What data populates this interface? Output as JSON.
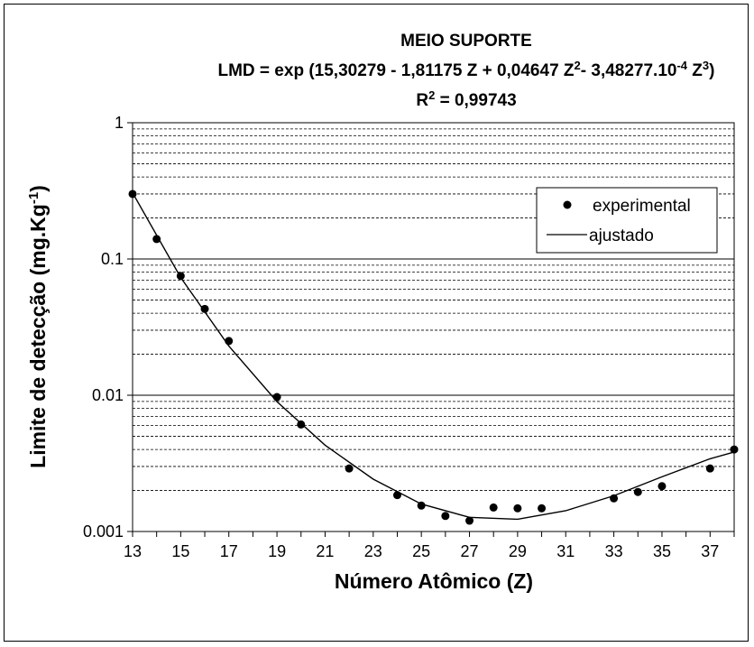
{
  "chart_data": {
    "type": "scatter",
    "title": "MEIO SUPORTE",
    "equation": {
      "lead": "LMD = exp (15,30279 - 1,81175 Z + 0,04647 Z",
      "sup1": "2",
      "mid": "- 3,48277.10",
      "sup2": "-4",
      "mid2": " Z",
      "sup3": "3",
      "tail": ")"
    },
    "r2": {
      "base": "R",
      "sup": "2",
      "rest": " = 0,99743"
    },
    "xlabel": "Número Atômico (Z)",
    "ylabel": {
      "base": "Limite de detecção (mg.Kg",
      "sup": "-1",
      "tail": ")"
    },
    "xlim": [
      13,
      38
    ],
    "ylim": [
      0.001,
      1
    ],
    "y_scale": "log",
    "x_ticks": [
      "13",
      "15",
      "17",
      "19",
      "21",
      "23",
      "25",
      "27",
      "29",
      "31",
      "33",
      "35",
      "37"
    ],
    "y_ticks": [
      {
        "value": 1,
        "label": "1"
      },
      {
        "value": 0.1,
        "label": "0.1"
      },
      {
        "value": 0.01,
        "label": "0.01"
      },
      {
        "value": 0.001,
        "label": "0.001"
      }
    ],
    "grid": "horizontal dashed minor, solid major",
    "legend_position": "top-right",
    "series": [
      {
        "name": "experimental",
        "kind": "markers",
        "x": [
          13,
          14,
          15,
          16,
          17,
          19,
          20,
          22,
          24,
          25,
          26,
          27,
          28,
          29,
          30,
          33,
          34,
          35,
          37,
          38
        ],
        "y": [
          0.3,
          0.14,
          0.075,
          0.043,
          0.025,
          0.0097,
          0.0061,
          0.0029,
          0.00185,
          0.00155,
          0.0013,
          0.0012,
          0.0015,
          0.00148,
          0.00148,
          0.00175,
          0.00195,
          0.00215,
          0.0029,
          0.004
        ]
      },
      {
        "name": "ajustado",
        "kind": "line",
        "x": [
          13,
          15,
          17,
          19,
          21,
          23,
          25,
          27,
          29,
          31,
          33,
          35,
          37,
          38
        ],
        "y": [
          0.306,
          0.073,
          0.023,
          0.00897,
          0.0043,
          0.00242,
          0.00159,
          0.00127,
          0.00123,
          0.00142,
          0.00183,
          0.00252,
          0.00342,
          0.00383
        ]
      }
    ],
    "colors": {
      "marker": "#000000",
      "line": "#000000",
      "grid": "#000000"
    }
  }
}
